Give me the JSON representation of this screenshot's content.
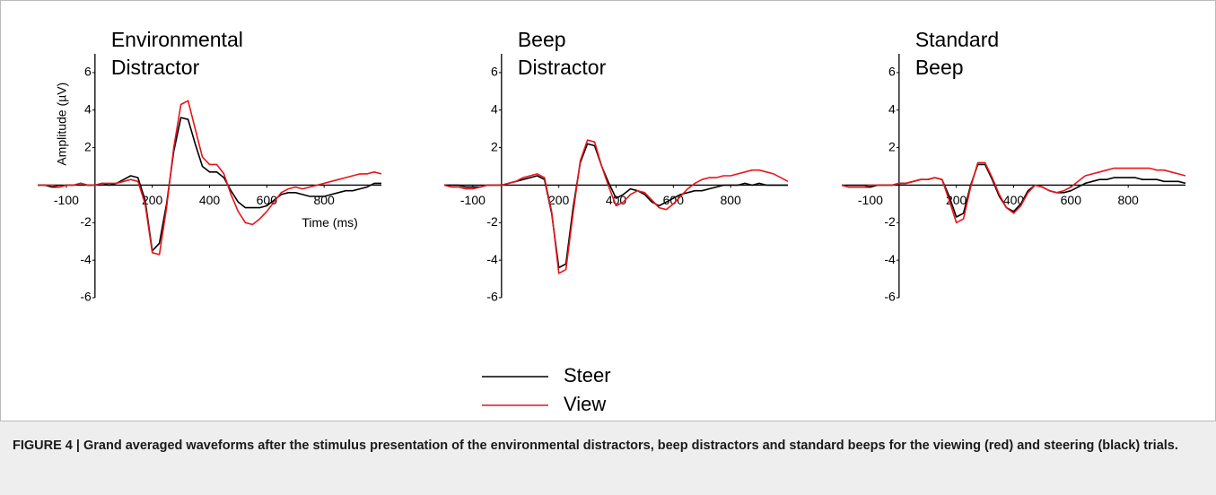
{
  "chart_data": [
    {
      "type": "line",
      "title": [
        "Environmental",
        "Distractor"
      ],
      "ylabel": "Amplitude (µV)",
      "xlabel": "Time (ms)",
      "x": [
        -200,
        -175,
        -150,
        -125,
        -100,
        -75,
        -50,
        -25,
        0,
        25,
        50,
        75,
        100,
        125,
        150,
        175,
        200,
        225,
        250,
        275,
        300,
        325,
        350,
        375,
        400,
        425,
        450,
        475,
        500,
        525,
        550,
        575,
        600,
        625,
        650,
        675,
        700,
        725,
        750,
        775,
        800,
        825,
        850,
        875,
        900,
        925,
        950,
        975,
        1000
      ],
      "xlim": [
        -200,
        1000
      ],
      "xticks": [
        -100,
        200,
        400,
        600,
        800
      ],
      "ylim": [
        -6,
        7
      ],
      "yticks": [
        -6,
        -4,
        -2,
        0,
        2,
        4,
        6
      ],
      "series": [
        {
          "name": "Steer",
          "color": "#000000",
          "values": [
            0,
            0,
            -0.1,
            -0.1,
            0,
            0,
            0.1,
            0,
            0,
            0.1,
            0,
            0.1,
            0.3,
            0.5,
            0.4,
            -0.8,
            -3.5,
            -3.1,
            -1.0,
            1.8,
            3.6,
            3.5,
            2.2,
            1.0,
            0.7,
            0.7,
            0.4,
            -0.3,
            -0.9,
            -1.2,
            -1.2,
            -1.2,
            -1.1,
            -0.8,
            -0.5,
            -0.4,
            -0.4,
            -0.5,
            -0.6,
            -0.6,
            -0.6,
            -0.5,
            -0.4,
            -0.3,
            -0.3,
            -0.2,
            -0.1,
            0.1,
            0.1
          ]
        },
        {
          "name": "View",
          "color": "#e8141b",
          "values": [
            0,
            0,
            0,
            -0.1,
            0,
            0,
            0.1,
            0,
            0,
            0.1,
            0.1,
            0.1,
            0.2,
            0.3,
            0.2,
            -1.0,
            -3.6,
            -3.7,
            -1.2,
            2.0,
            4.3,
            4.5,
            3.0,
            1.5,
            1.1,
            1.1,
            0.6,
            -0.5,
            -1.4,
            -2.0,
            -2.1,
            -1.8,
            -1.4,
            -0.9,
            -0.4,
            -0.2,
            -0.1,
            -0.2,
            -0.1,
            0.0,
            0.1,
            0.2,
            0.3,
            0.4,
            0.5,
            0.6,
            0.6,
            0.7,
            0.6
          ]
        }
      ]
    },
    {
      "type": "line",
      "title": [
        "Beep",
        "Distractor"
      ],
      "x": [
        -200,
        -175,
        -150,
        -125,
        -100,
        -75,
        -50,
        -25,
        0,
        25,
        50,
        75,
        100,
        125,
        150,
        175,
        200,
        225,
        250,
        275,
        300,
        325,
        350,
        375,
        400,
        425,
        450,
        475,
        500,
        525,
        550,
        575,
        600,
        625,
        650,
        675,
        700,
        725,
        750,
        775,
        800,
        825,
        850,
        875,
        900,
        925,
        950,
        975,
        1000
      ],
      "xlim": [
        -200,
        1000
      ],
      "xticks": [
        -100,
        200,
        400,
        600,
        800
      ],
      "ylim": [
        -6,
        7
      ],
      "yticks": [
        -6,
        -4,
        -2,
        0,
        2,
        4,
        6
      ],
      "series": [
        {
          "name": "Steer",
          "color": "#000000",
          "values": [
            0,
            0,
            0,
            -0.1,
            -0.1,
            -0.1,
            0,
            0,
            0,
            0.1,
            0.2,
            0.3,
            0.4,
            0.5,
            0.3,
            -1.5,
            -4.4,
            -4.2,
            -1.2,
            1.2,
            2.2,
            2.1,
            1.0,
            0.1,
            -0.7,
            -0.5,
            -0.2,
            -0.3,
            -0.5,
            -0.9,
            -1.1,
            -0.9,
            -0.7,
            -0.5,
            -0.4,
            -0.3,
            -0.3,
            -0.2,
            -0.1,
            0,
            0,
            0,
            0.1,
            0,
            0.1,
            0,
            0,
            0,
            0
          ]
        },
        {
          "name": "View",
          "color": "#e8141b",
          "values": [
            0,
            -0.1,
            -0.1,
            -0.2,
            -0.2,
            -0.1,
            0,
            0,
            0,
            0.1,
            0.2,
            0.4,
            0.5,
            0.6,
            0.4,
            -1.4,
            -4.7,
            -4.5,
            -1.5,
            1.3,
            2.4,
            2.3,
            1.0,
            -0.1,
            -1.1,
            -0.9,
            -0.5,
            -0.3,
            -0.4,
            -0.8,
            -1.2,
            -1.3,
            -1.0,
            -0.6,
            -0.2,
            0.1,
            0.3,
            0.4,
            0.4,
            0.5,
            0.5,
            0.6,
            0.7,
            0.8,
            0.8,
            0.7,
            0.6,
            0.4,
            0.2
          ]
        }
      ]
    },
    {
      "type": "line",
      "title": [
        "Standard",
        "Beep"
      ],
      "x": [
        -200,
        -175,
        -150,
        -125,
        -100,
        -75,
        -50,
        -25,
        0,
        25,
        50,
        75,
        100,
        125,
        150,
        175,
        200,
        225,
        250,
        275,
        300,
        325,
        350,
        375,
        400,
        425,
        450,
        475,
        500,
        525,
        550,
        575,
        600,
        625,
        650,
        675,
        700,
        725,
        750,
        775,
        800,
        825,
        850,
        875,
        900,
        925,
        950,
        975,
        1000
      ],
      "xlim": [
        -200,
        1000
      ],
      "xticks": [
        -100,
        200,
        400,
        600,
        800
      ],
      "ylim": [
        -6,
        7
      ],
      "yticks": [
        -6,
        -4,
        -2,
        0,
        2,
        4,
        6
      ],
      "series": [
        {
          "name": "Steer",
          "color": "#000000",
          "values": [
            0,
            -0.1,
            -0.1,
            -0.1,
            -0.1,
            0,
            0,
            0,
            0.1,
            0.1,
            0.2,
            0.3,
            0.3,
            0.4,
            0.3,
            -0.6,
            -1.7,
            -1.5,
            0,
            1.1,
            1.1,
            0.3,
            -0.6,
            -1.2,
            -1.4,
            -1.0,
            -0.3,
            0,
            -0.1,
            -0.3,
            -0.4,
            -0.4,
            -0.3,
            -0.1,
            0.1,
            0.2,
            0.3,
            0.3,
            0.4,
            0.4,
            0.4,
            0.4,
            0.3,
            0.3,
            0.3,
            0.2,
            0.2,
            0.2,
            0.1
          ]
        },
        {
          "name": "View",
          "color": "#e8141b",
          "values": [
            0,
            -0.1,
            -0.1,
            -0.1,
            0,
            0,
            0,
            0,
            0.1,
            0.1,
            0.2,
            0.3,
            0.3,
            0.4,
            0.3,
            -0.8,
            -2.0,
            -1.8,
            -0.1,
            1.2,
            1.2,
            0.4,
            -0.5,
            -1.2,
            -1.5,
            -1.1,
            -0.4,
            0,
            -0.1,
            -0.3,
            -0.4,
            -0.3,
            -0.1,
            0.2,
            0.5,
            0.6,
            0.7,
            0.8,
            0.9,
            0.9,
            0.9,
            0.9,
            0.9,
            0.9,
            0.8,
            0.8,
            0.7,
            0.6,
            0.5
          ]
        }
      ]
    }
  ],
  "caption": "FIGURE 4 | Grand averaged waveforms after the stimulus presentation of the environmental distractors, beep distractors and standard beeps for the viewing (red) and steering (black) trials."
}
